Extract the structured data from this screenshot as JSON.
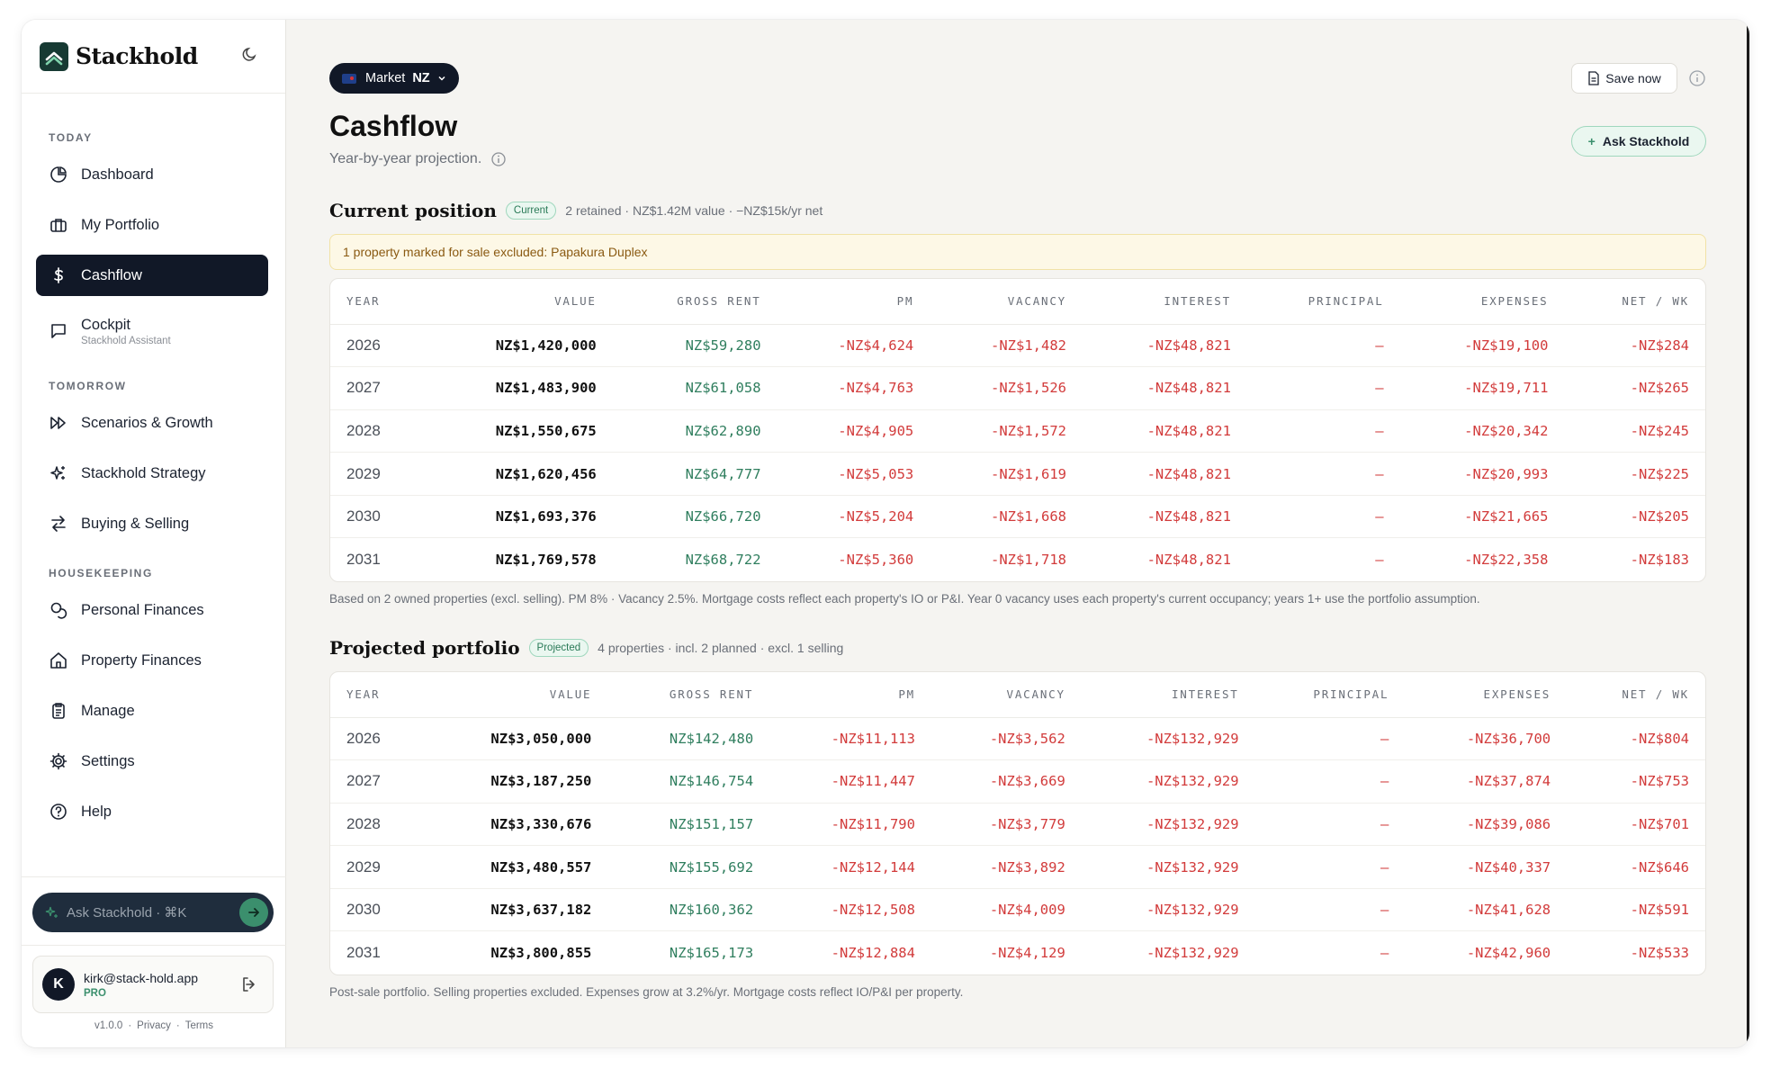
{
  "brand": {
    "name": "Stackhold"
  },
  "sidebar": {
    "sections": {
      "today": "TODAY",
      "tomorrow": "TOMORROW",
      "housekeeping": "HOUSEKEEPING"
    },
    "items": [
      {
        "label": "Dashboard",
        "icon": "pie-chart-icon"
      },
      {
        "label": "My Portfolio",
        "icon": "briefcase-icon"
      },
      {
        "label": "Cashflow",
        "icon": "dollar-icon",
        "active": true
      },
      {
        "label": "Cockpit",
        "sub": "Stackhold Assistant",
        "icon": "chat-icon"
      },
      {
        "label": "Scenarios & Growth",
        "icon": "fast-forward-icon"
      },
      {
        "label": "Stackhold Strategy",
        "icon": "sparkles-icon"
      },
      {
        "label": "Buying & Selling",
        "icon": "swap-arrows-icon"
      },
      {
        "label": "Personal Finances",
        "icon": "coins-icon"
      },
      {
        "label": "Property Finances",
        "icon": "home-icon"
      },
      {
        "label": "Manage",
        "icon": "clipboard-icon"
      },
      {
        "label": "Settings",
        "icon": "gear-icon"
      },
      {
        "label": "Help",
        "icon": "help-circle-icon"
      }
    ],
    "ask": {
      "placeholder": "Ask Stackhold · ⌘K"
    },
    "user": {
      "initial": "K",
      "email": "kirk@stack-hold.app",
      "plan": "PRO"
    },
    "footer": {
      "version": "v1.0.0",
      "privacy": "Privacy",
      "terms": "Terms",
      "sep": "·"
    }
  },
  "header": {
    "market_label": "Market",
    "market_value": "NZ",
    "title": "Cashflow",
    "subtitle": "Year-by-year projection.",
    "save_label": "Save now",
    "ask_label": "Ask Stackhold"
  },
  "current": {
    "title": "Current position",
    "badge": "Current",
    "meta": "2 retained · NZ$1.42M value · −NZ$15k/yr net",
    "notice": "1 property marked for sale excluded: Papakura Duplex",
    "columns": [
      "YEAR",
      "VALUE",
      "GROSS RENT",
      "PM",
      "VACANCY",
      "INTEREST",
      "PRINCIPAL",
      "EXPENSES",
      "NET / WK"
    ],
    "rows": [
      [
        "2026",
        "NZ$1,420,000",
        "NZ$59,280",
        "-NZ$4,624",
        "-NZ$1,482",
        "-NZ$48,821",
        "—",
        "-NZ$19,100",
        "-NZ$284"
      ],
      [
        "2027",
        "NZ$1,483,900",
        "NZ$61,058",
        "-NZ$4,763",
        "-NZ$1,526",
        "-NZ$48,821",
        "—",
        "-NZ$19,711",
        "-NZ$265"
      ],
      [
        "2028",
        "NZ$1,550,675",
        "NZ$62,890",
        "-NZ$4,905",
        "-NZ$1,572",
        "-NZ$48,821",
        "—",
        "-NZ$20,342",
        "-NZ$245"
      ],
      [
        "2029",
        "NZ$1,620,456",
        "NZ$64,777",
        "-NZ$5,053",
        "-NZ$1,619",
        "-NZ$48,821",
        "—",
        "-NZ$20,993",
        "-NZ$225"
      ],
      [
        "2030",
        "NZ$1,693,376",
        "NZ$66,720",
        "-NZ$5,204",
        "-NZ$1,668",
        "-NZ$48,821",
        "—",
        "-NZ$21,665",
        "-NZ$205"
      ],
      [
        "2031",
        "NZ$1,769,578",
        "NZ$68,722",
        "-NZ$5,360",
        "-NZ$1,718",
        "-NZ$48,821",
        "—",
        "-NZ$22,358",
        "-NZ$183"
      ]
    ],
    "footnote": "Based on 2 owned properties (excl. selling). PM 8% · Vacancy 2.5%. Mortgage costs reflect each property's IO or P&I. Year 0 vacancy uses each property's current occupancy; years 1+ use the portfolio assumption."
  },
  "projected": {
    "title": "Projected portfolio",
    "badge": "Projected",
    "meta": "4 properties · incl. 2 planned · excl. 1 selling",
    "columns": [
      "YEAR",
      "VALUE",
      "GROSS RENT",
      "PM",
      "VACANCY",
      "INTEREST",
      "PRINCIPAL",
      "EXPENSES",
      "NET / WK"
    ],
    "rows": [
      [
        "2026",
        "NZ$3,050,000",
        "NZ$142,480",
        "-NZ$11,113",
        "-NZ$3,562",
        "-NZ$132,929",
        "—",
        "-NZ$36,700",
        "-NZ$804"
      ],
      [
        "2027",
        "NZ$3,187,250",
        "NZ$146,754",
        "-NZ$11,447",
        "-NZ$3,669",
        "-NZ$132,929",
        "—",
        "-NZ$37,874",
        "-NZ$753"
      ],
      [
        "2028",
        "NZ$3,330,676",
        "NZ$151,157",
        "-NZ$11,790",
        "-NZ$3,779",
        "-NZ$132,929",
        "—",
        "-NZ$39,086",
        "-NZ$701"
      ],
      [
        "2029",
        "NZ$3,480,557",
        "NZ$155,692",
        "-NZ$12,144",
        "-NZ$3,892",
        "-NZ$132,929",
        "—",
        "-NZ$40,337",
        "-NZ$646"
      ],
      [
        "2030",
        "NZ$3,637,182",
        "NZ$160,362",
        "-NZ$12,508",
        "-NZ$4,009",
        "-NZ$132,929",
        "—",
        "-NZ$41,628",
        "-NZ$591"
      ],
      [
        "2031",
        "NZ$3,800,855",
        "NZ$165,173",
        "-NZ$12,884",
        "-NZ$4,129",
        "-NZ$132,929",
        "—",
        "-NZ$42,960",
        "-NZ$533"
      ]
    ],
    "footnote": "Post-sale portfolio. Selling properties excluded. Expenses grow at 3.2%/yr. Mortgage costs reflect IO/P&I per property."
  },
  "colors": {
    "accent": "#3b8f6d",
    "active_nav": "#111827",
    "negative": "#d23b3b",
    "positive": "#2f7e5e"
  }
}
